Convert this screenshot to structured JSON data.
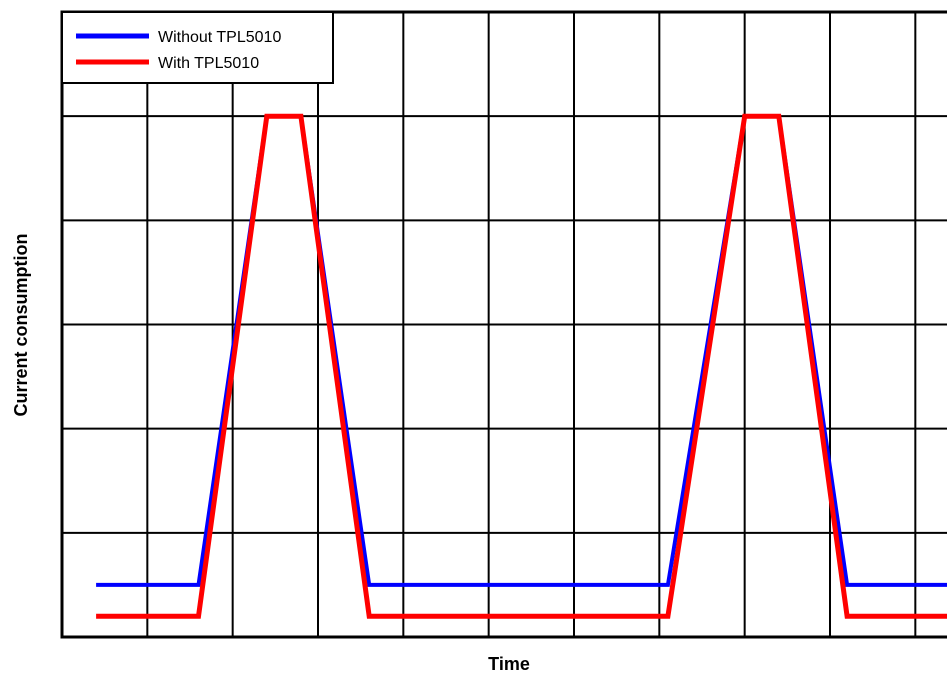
{
  "chart_data": {
    "type": "line",
    "title": "",
    "xlabel": "Time",
    "ylabel": "Current consumption",
    "xlim": [
      0,
      10.5
    ],
    "ylim": [
      0,
      6
    ],
    "grid": true,
    "tick_labels_shown": false,
    "legend": "top-left",
    "series": [
      {
        "name": "Without TPL5010",
        "color": "#0000ff",
        "x": [
          0.4,
          1.6,
          2.4,
          2.8,
          3.6,
          7.1,
          8.0,
          8.4,
          9.2,
          10.4
        ],
        "y": [
          0.5,
          0.5,
          5.0,
          5.0,
          0.5,
          0.5,
          5.0,
          5.0,
          0.5,
          0.5
        ]
      },
      {
        "name": "With TPL5010",
        "color": "#ff0000",
        "x": [
          0.4,
          1.6,
          2.4,
          2.8,
          3.6,
          7.1,
          8.0,
          8.4,
          9.2,
          10.4
        ],
        "y": [
          0.2,
          0.2,
          5.0,
          5.0,
          0.2,
          0.2,
          5.0,
          5.0,
          0.2,
          0.2
        ]
      }
    ]
  }
}
